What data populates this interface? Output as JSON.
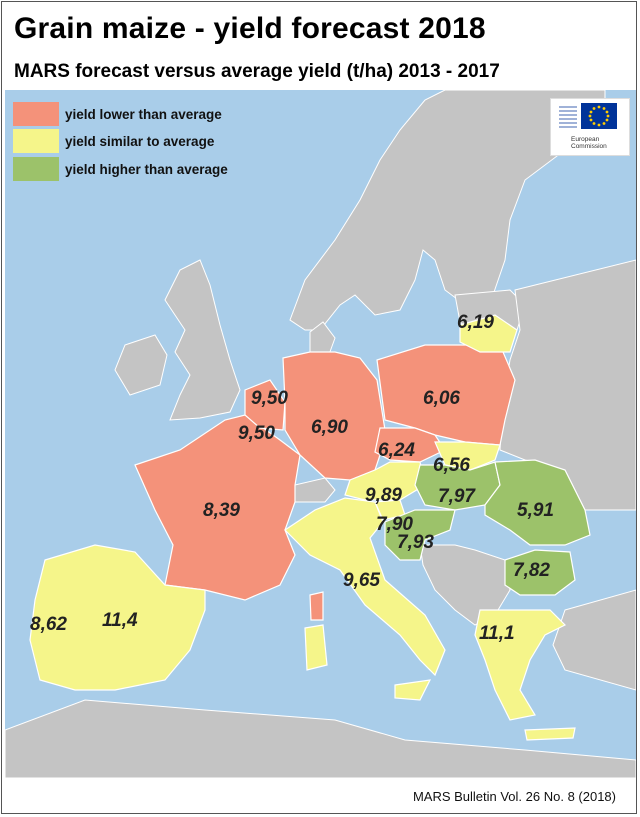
{
  "title": "Grain maize - yield forecast 2018",
  "subtitle": "MARS forecast versus average yield (t/ha) 2013 - 2017",
  "legend": [
    {
      "label": "yield lower than average",
      "color": "#f4927a"
    },
    {
      "label": "yield similar to average",
      "color": "#f5f58a"
    },
    {
      "label": "yield higher than average",
      "color": "#9cc26a"
    }
  ],
  "logo": {
    "text": "European\nCommission",
    "icon": "eu-flag-icon"
  },
  "colors": {
    "sea": "#a9cde9",
    "non_eu": "#c4c4c4",
    "lower": "#f4927a",
    "similar": "#f5f58a",
    "higher": "#9cc26a"
  },
  "yields": [
    {
      "region": "Lithuania",
      "value": "6,19",
      "category": "similar"
    },
    {
      "region": "Netherlands",
      "value": "9,50",
      "category": "lower"
    },
    {
      "region": "Belgium",
      "value": "9,50",
      "category": "lower"
    },
    {
      "region": "Germany",
      "value": "6,90",
      "category": "lower"
    },
    {
      "region": "Poland",
      "value": "6,06",
      "category": "lower"
    },
    {
      "region": "Czechia",
      "value": "6,24",
      "category": "lower"
    },
    {
      "region": "Slovakia",
      "value": "6,56",
      "category": "similar"
    },
    {
      "region": "France",
      "value": "8,39",
      "category": "lower"
    },
    {
      "region": "Austria",
      "value": "9,89",
      "category": "similar"
    },
    {
      "region": "Hungary",
      "value": "7,97",
      "category": "higher"
    },
    {
      "region": "Romania",
      "value": "5,91",
      "category": "higher"
    },
    {
      "region": "Slovenia",
      "value": "7,90",
      "category": "similar"
    },
    {
      "region": "Croatia",
      "value": "7,93",
      "category": "higher"
    },
    {
      "region": "Italy",
      "value": "9,65",
      "category": "similar"
    },
    {
      "region": "Bulgaria",
      "value": "7,82",
      "category": "higher"
    },
    {
      "region": "Portugal",
      "value": "8,62",
      "category": "similar"
    },
    {
      "region": "Spain",
      "value": "11,4",
      "category": "similar"
    },
    {
      "region": "Greece",
      "value": "11,1",
      "category": "similar"
    }
  ],
  "footer": "MARS Bulletin Vol. 26 No. 8 (2018)"
}
